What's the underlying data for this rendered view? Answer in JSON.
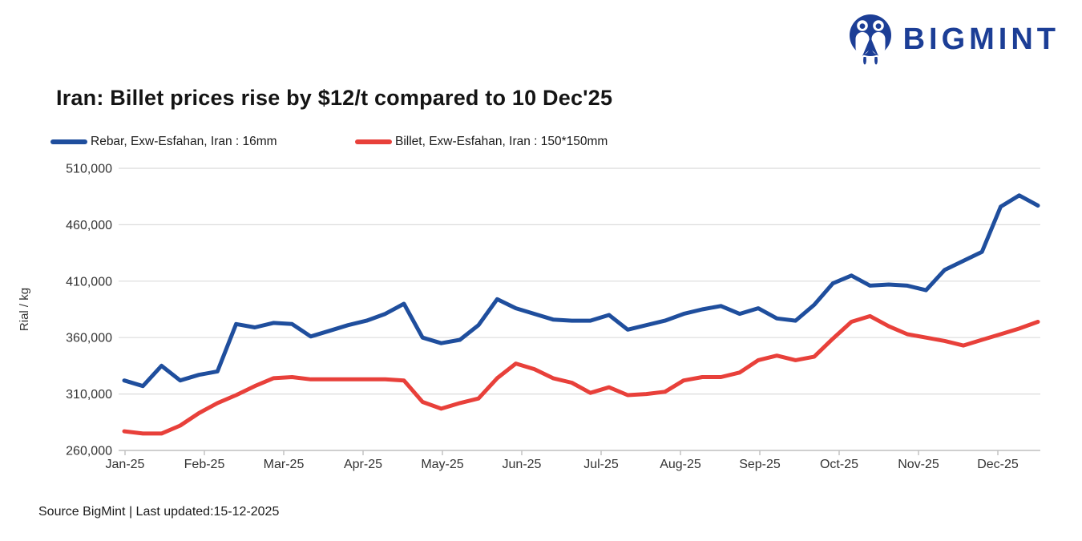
{
  "logo": {
    "text": "BIGMINT",
    "color": "#1C3E96"
  },
  "title": {
    "text": "Iran: Billet prices rise by $12/t compared to 10 Dec'25"
  },
  "footer": {
    "text": "Source BigMint | Last updated:15-12-2025"
  },
  "colors": {
    "rebar_line": "#1F4E9D",
    "billet_line": "#E8403A",
    "grid": "#DBDBDB",
    "axis": "#BFBFBF",
    "tick_text": "#333333"
  },
  "chart_data": {
    "type": "line",
    "title": "Iran: Billet prices rise by $12/t compared to 10 Dec'25",
    "xlabel": "",
    "ylabel": "Rial / kg",
    "ylim": [
      260000,
      510000
    ],
    "yticks": [
      260000,
      310000,
      360000,
      410000,
      460000,
      510000
    ],
    "x_tick_labels": [
      "Jan-25",
      "Feb-25",
      "Mar-25",
      "Apr-25",
      "May-25",
      "Jun-25",
      "Jul-25",
      "Aug-25",
      "Sep-25",
      "Oct-25",
      "Nov-25",
      "Dec-25"
    ],
    "grid": "horizontal",
    "legend_position": "top-left",
    "series": [
      {
        "name": "Rebar, Exw-Esfahan, Iran : 16mm",
        "color": "#1F4E9D",
        "values": [
          322000,
          317000,
          335000,
          322000,
          327000,
          330000,
          372000,
          369000,
          373000,
          372000,
          361000,
          366000,
          371000,
          375000,
          381000,
          390000,
          360000,
          355000,
          358000,
          371000,
          394000,
          386000,
          381000,
          376000,
          375000,
          375000,
          380000,
          367000,
          371000,
          375000,
          381000,
          385000,
          388000,
          381000,
          386000,
          377000,
          375000,
          389000,
          408000,
          415000,
          406000,
          407000,
          406000,
          402000,
          420000,
          428000,
          436000,
          476000,
          486000,
          477000
        ]
      },
      {
        "name": "Billet, Exw-Esfahan, Iran : 150*150mm",
        "color": "#E8403A",
        "values": [
          277000,
          275000,
          275000,
          282000,
          293000,
          302000,
          309000,
          317000,
          324000,
          325000,
          323000,
          323000,
          323000,
          323000,
          323000,
          322000,
          303000,
          297000,
          302000,
          306000,
          324000,
          337000,
          332000,
          324000,
          320000,
          311000,
          316000,
          309000,
          310000,
          312000,
          322000,
          325000,
          325000,
          329000,
          340000,
          344000,
          340000,
          343000,
          359000,
          374000,
          379000,
          370000,
          363000,
          360000,
          357000,
          353000,
          358000,
          363000,
          368000,
          374000
        ]
      }
    ]
  }
}
